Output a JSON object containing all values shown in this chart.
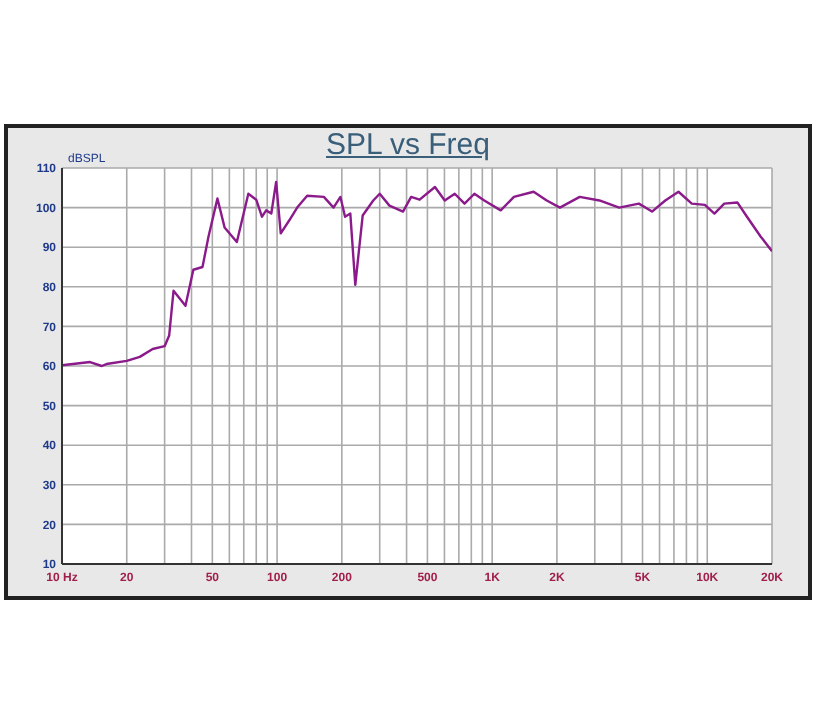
{
  "chart_data": {
    "type": "line",
    "title": "SPL vs Freq",
    "ylabel": "dBSPL",
    "log": "x",
    "grid": true,
    "marker": "none",
    "line_style": "solid",
    "xlim": [
      10,
      20000
    ],
    "xticks": [
      {
        "value": 10,
        "label": "10 Hz"
      },
      20,
      {
        "value": 30,
        "label": null
      },
      {
        "value": 40,
        "label": null
      },
      50,
      {
        "value": 60,
        "label": null
      },
      {
        "value": 70,
        "label": null
      },
      {
        "value": 80,
        "label": null
      },
      {
        "value": 90,
        "label": null
      },
      100,
      200,
      {
        "value": 300,
        "label": null
      },
      {
        "value": 400,
        "label": null
      },
      500,
      {
        "value": 600,
        "label": null
      },
      {
        "value": 700,
        "label": null
      },
      {
        "value": 800,
        "label": null
      },
      {
        "value": 900,
        "label": null
      },
      {
        "value": 1000,
        "label": "1K"
      },
      {
        "value": 2000,
        "label": "2K"
      },
      {
        "value": 3000,
        "label": null
      },
      {
        "value": 4000,
        "label": null
      },
      {
        "value": 5000,
        "label": "5K"
      },
      {
        "value": 6000,
        "label": null
      },
      {
        "value": 7000,
        "label": null
      },
      {
        "value": 8000,
        "label": null
      },
      {
        "value": 9000,
        "label": null
      },
      {
        "value": 10000,
        "label": "10K"
      },
      {
        "value": 20000,
        "label": "20K"
      }
    ],
    "ylim": [
      10,
      110
    ],
    "yticks": [
      10,
      20,
      30,
      40,
      50,
      60,
      70,
      80,
      90,
      100,
      110
    ],
    "series": [
      {
        "color": "#8b1a8b",
        "x": [
          10,
          13.5,
          15.3,
          16.1,
          20,
          23,
          26.4,
          30,
          31.5,
          33,
          37.5,
          40.8,
          45,
          48,
          52.8,
          57,
          65,
          73.5,
          80,
          85,
          89,
          94,
          99,
          104,
          114,
          124,
          138,
          165,
          183,
          197,
          207,
          219,
          231,
          250,
          280,
          300,
          333,
          385,
          420,
          460,
          542,
          602,
          670,
          744,
          827,
          919,
          1096,
          1262,
          1558,
          1794,
          2065,
          2553,
          3153,
          3894,
          4808,
          5538,
          6380,
          7350,
          8475,
          9750,
          10800,
          12000,
          13800,
          15300,
          17700,
          20000
        ],
        "values": [
          60.2,
          61,
          60,
          60.5,
          61.3,
          62.3,
          64.3,
          65,
          67.7,
          79,
          75.2,
          84.3,
          85,
          92.7,
          102.3,
          95,
          91.3,
          103.5,
          102,
          97.7,
          99.3,
          98.5,
          106.5,
          93.5,
          96.8,
          100,
          103,
          102.7,
          100,
          102.7,
          97.7,
          98.5,
          80.5,
          98,
          101.8,
          103.5,
          100.5,
          99,
          102.7,
          102,
          105.2,
          101.8,
          103.5,
          101,
          103.5,
          101.8,
          99.3,
          102.7,
          104,
          101.8,
          100,
          102.7,
          101.8,
          100,
          101,
          99,
          101.8,
          104,
          101,
          100.7,
          98.5,
          101,
          101.3,
          97.7,
          92.7,
          89
        ]
      }
    ]
  }
}
